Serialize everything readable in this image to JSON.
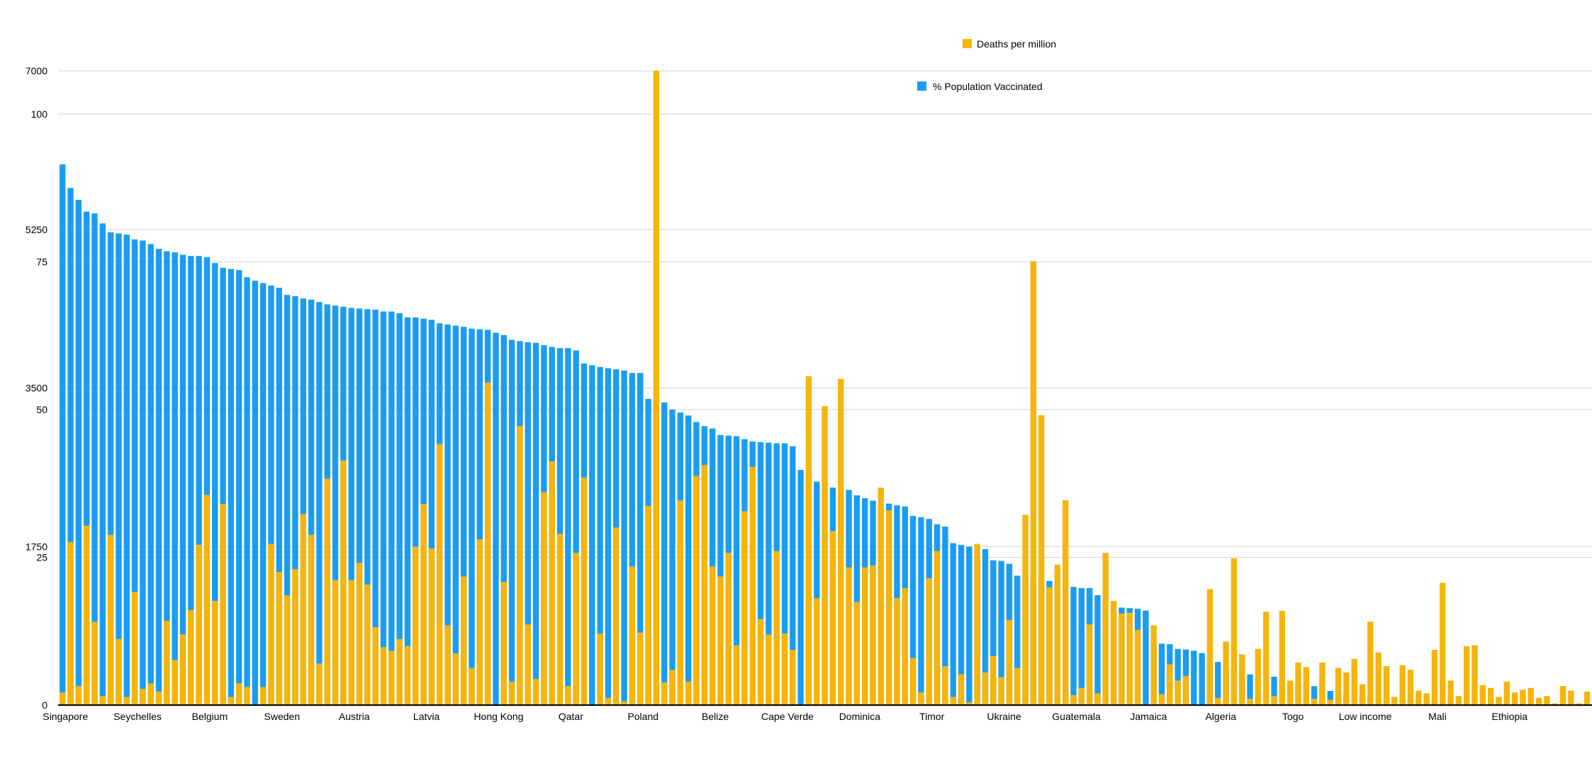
{
  "chart_data": {
    "type": "bar",
    "colors": {
      "vaccinated": "#1a9df0",
      "deaths": "#f5b50a",
      "grid": "#d4d4d4",
      "axis": "#000000"
    },
    "legend": [
      {
        "name": "Deaths per million",
        "color": "#f5b50a",
        "position": "top"
      },
      {
        "name": "% Population Vaccinated",
        "color": "#1a9df0",
        "position": "top"
      }
    ],
    "y_left": {
      "ticks": [
        "0",
        "1750",
        "3500",
        "5250",
        "7000"
      ],
      "range": [
        0,
        7000
      ],
      "label": ""
    },
    "y_right": {
      "ticks": [
        "25",
        "50",
        "75",
        "100"
      ],
      "range": [
        0,
        100
      ],
      "label": ""
    },
    "grid": true,
    "x_tick_labels": [
      {
        "index": 0,
        "label": "Singapore"
      },
      {
        "index": 9,
        "label": "Seychelles"
      },
      {
        "index": 18,
        "label": "Belgium"
      },
      {
        "index": 27,
        "label": "Sweden"
      },
      {
        "index": 36,
        "label": "Austria"
      },
      {
        "index": 45,
        "label": "Latvia"
      },
      {
        "index": 54,
        "label": "Hong Kong"
      },
      {
        "index": 63,
        "label": "Qatar"
      },
      {
        "index": 72,
        "label": "Poland"
      },
      {
        "index": 81,
        "label": "Belize"
      },
      {
        "index": 90,
        "label": "Cape Verde"
      },
      {
        "index": 99,
        "label": "Dominica"
      },
      {
        "index": 108,
        "label": "Timor"
      },
      {
        "index": 117,
        "label": "Ukraine"
      },
      {
        "index": 126,
        "label": "Guatemala"
      },
      {
        "index": 135,
        "label": "Jamaica"
      },
      {
        "index": 144,
        "label": "Algeria"
      },
      {
        "index": 153,
        "label": "Togo"
      },
      {
        "index": 162,
        "label": "Low income"
      },
      {
        "index": 171,
        "label": "Mali"
      },
      {
        "index": 180,
        "label": "Ethiopia"
      }
    ],
    "series": [
      {
        "name": "% Population Vaccinated",
        "axis": "right",
        "values": [
          91.5,
          87.5,
          85.5,
          83.5,
          83.2,
          81.5,
          80,
          79.8,
          79.6,
          78.8,
          78.6,
          78,
          77.2,
          76.8,
          76.6,
          76.2,
          76,
          76,
          75.8,
          74.8,
          74,
          73.8,
          73.6,
          72.4,
          71.8,
          71.4,
          71,
          70.6,
          69.4,
          69.2,
          68.8,
          68.6,
          68.2,
          67.8,
          67.6,
          67.4,
          67.2,
          67.1,
          67,
          66.9,
          66.6,
          66.6,
          66.3,
          65.6,
          65.6,
          65.4,
          65.2,
          64.6,
          64.4,
          64.2,
          64,
          63.7,
          63.6,
          63.5,
          63,
          62.6,
          61.8,
          61.6,
          61.4,
          61.3,
          60.9,
          60.6,
          60.4,
          60.4,
          60,
          57.8,
          57.5,
          57.2,
          57,
          56.8,
          56.6,
          56.2,
          56.2,
          51.8,
          51.7,
          51.2,
          50,
          49.5,
          49,
          47.9,
          47.2,
          46.8,
          45.7,
          45.6,
          45.5,
          45,
          44.6,
          44.5,
          44.4,
          44.3,
          44.3,
          43.8,
          39.8,
          39.8,
          37.8,
          37.4,
          36.8,
          36.5,
          36.4,
          35.5,
          35,
          34.6,
          34.3,
          34.1,
          33.8,
          33.6,
          32,
          31.8,
          31.5,
          30.6,
          30.2,
          27.4,
          27.1,
          26.8,
          26.6,
          26.4,
          24.5,
          24.4,
          23.9,
          21.9,
          21.6,
          21.4,
          21.2,
          21,
          20.8,
          20.3,
          20,
          19.8,
          19.8,
          18.6,
          18.4,
          16.6,
          16.5,
          16.4,
          16.3,
          16,
          10.6,
          10.4,
          10.3,
          9.5,
          9.4,
          9.2,
          8.8,
          7.9,
          7.3,
          6.6,
          6.2,
          5.6,
          5.2,
          4.9,
          4.8,
          4.8,
          4.1,
          3.8,
          3.6,
          3.4,
          3.2,
          2.6,
          2.4,
          2.1,
          1.8,
          1.8,
          1.7,
          1.5,
          1.4,
          1.3,
          1.2,
          1.1,
          1,
          0.8,
          0.7,
          0.5,
          0.4,
          0.4,
          0.3,
          0.3,
          0.2,
          0.2,
          0.1,
          0.1,
          0.1,
          0.1,
          0.3
        ]
      },
      {
        "name": "Deaths per million",
        "axis": "left",
        "values": [
          140,
          1800,
          210,
          1980,
          920,
          100,
          1880,
          730,
          90,
          1250,
          180,
          240,
          150,
          930,
          500,
          780,
          1050,
          1770,
          2320,
          1150,
          2220,
          90,
          240,
          200,
          0,
          200,
          1780,
          1470,
          1210,
          1500,
          2110,
          1880,
          460,
          2500,
          1380,
          2700,
          1380,
          1570,
          1330,
          860,
          640,
          600,
          730,
          650,
          1750,
          2220,
          1730,
          2880,
          880,
          570,
          1420,
          410,
          1830,
          3560,
          0,
          1360,
          260,
          3080,
          890,
          290,
          2350,
          2690,
          1890,
          210,
          1680,
          2510,
          0,
          790,
          80,
          1960,
          40,
          1530,
          800,
          2200,
          7000,
          250,
          390,
          2260,
          260,
          2530,
          2650,
          1530,
          1420,
          1680,
          660,
          2140,
          2630,
          950,
          780,
          1700,
          790,
          610,
          0,
          3630,
          1180,
          3300,
          1920,
          3600,
          1520,
          1140,
          1520,
          1540,
          2400,
          2150,
          1180,
          1290,
          520,
          140,
          1400,
          1700,
          430,
          90,
          340,
          30,
          1780,
          360,
          540,
          310,
          940,
          410,
          2100,
          4900,
          3200,
          1300,
          1550,
          2260,
          110,
          190,
          890,
          130,
          1680,
          1150,
          1010,
          1020,
          830,
          0,
          880,
          120,
          450,
          270,
          320,
          0,
          0,
          1280,
          80,
          700,
          1620,
          560,
          70,
          620,
          1030,
          100,
          1040,
          270,
          470,
          420,
          70,
          470,
          60,
          410,
          360,
          510,
          230,
          920,
          580,
          430,
          90,
          440,
          390,
          160,
          130,
          610,
          1350,
          270,
          100,
          650,
          660,
          220,
          190,
          90,
          260,
          140,
          170,
          190,
          80,
          100,
          20,
          210,
          160,
          20,
          150,
          240,
          1650,
          160
        ]
      }
    ]
  }
}
